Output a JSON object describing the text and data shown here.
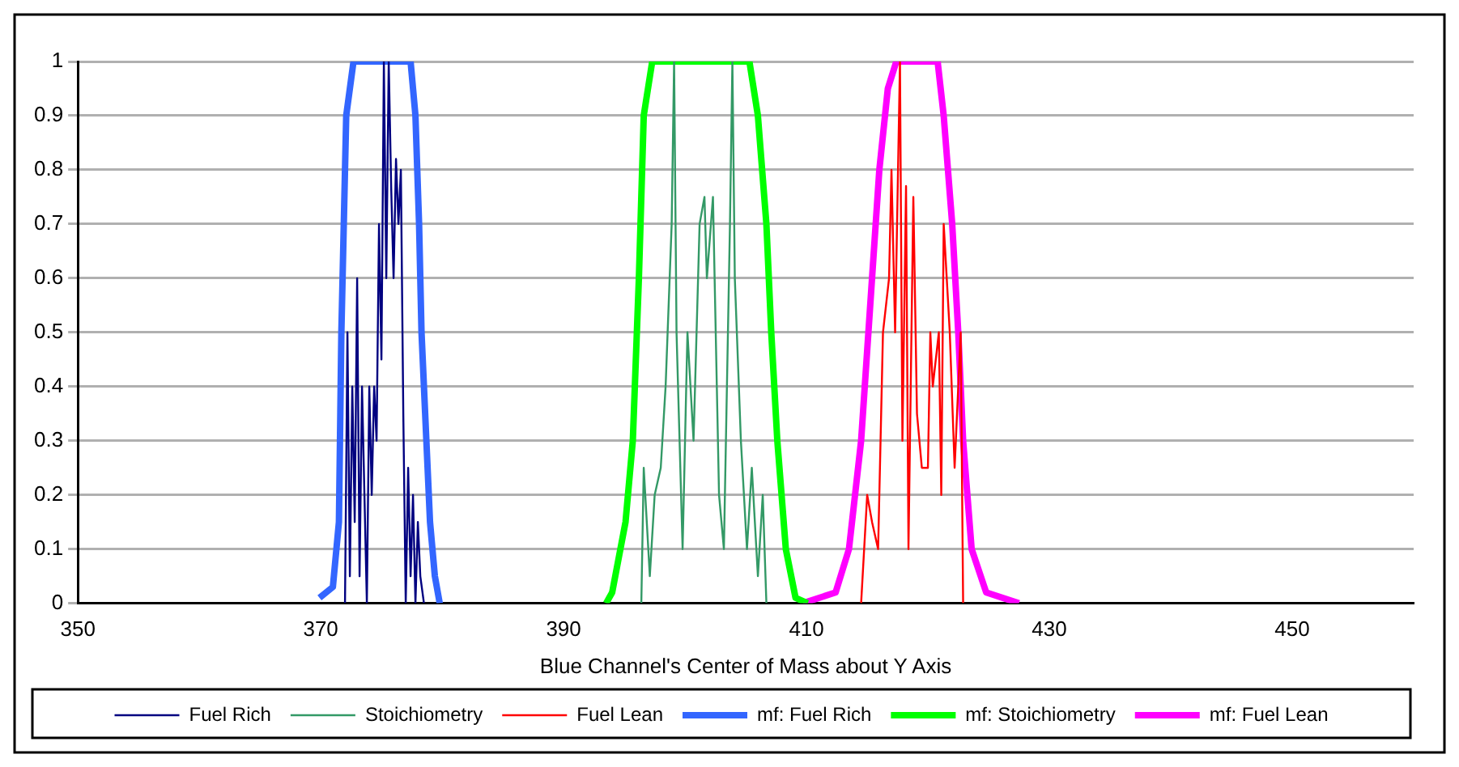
{
  "chart_data": {
    "type": "line",
    "xlabel": "Blue Channel's Center of Mass about Y Axis",
    "xlim": [
      350,
      460
    ],
    "xticks": [
      350,
      370,
      390,
      410,
      430,
      450
    ],
    "ylim": [
      0,
      1
    ],
    "yticks": [
      0,
      0.1,
      0.2,
      0.3,
      0.4,
      0.5,
      0.6,
      0.7,
      0.8,
      0.9,
      1
    ],
    "grid": "y",
    "legend": "bottom",
    "marker": "none",
    "line_style": "solid",
    "series": [
      {
        "name": "Fuel Rich",
        "color": "#000080",
        "x": [
          372.0,
          372.2,
          372.4,
          372.6,
          372.8,
          373.0,
          373.2,
          373.4,
          373.6,
          373.8,
          374.0,
          374.2,
          374.4,
          374.6,
          374.8,
          375.0,
          375.2,
          375.4,
          375.6,
          375.8,
          376.0,
          376.2,
          376.4,
          376.6,
          376.8,
          377.0,
          377.2,
          377.4,
          377.6,
          377.8,
          378.0,
          378.2,
          378.5
        ],
        "values": [
          0,
          0.5,
          0.05,
          0.4,
          0.15,
          0.6,
          0.05,
          0.4,
          0.2,
          0,
          0.4,
          0.2,
          0.4,
          0.3,
          0.7,
          0.45,
          1,
          0.6,
          1,
          0.77,
          0.6,
          0.82,
          0.7,
          0.8,
          0.35,
          0,
          0.25,
          0.05,
          0.2,
          0,
          0.15,
          0.05,
          0
        ]
      },
      {
        "name": "Stoichiometry",
        "color": "#339966",
        "x": [
          396.4,
          396.6,
          397.1,
          397.5,
          398.0,
          398.4,
          398.9,
          399.1,
          399.3,
          399.8,
          400.2,
          400.7,
          401.2,
          401.6,
          401.8,
          402.3,
          402.8,
          403.2,
          403.7,
          403.9,
          404.1,
          404.6,
          405.1,
          405.5,
          406.0,
          406.4,
          406.7
        ],
        "values": [
          0,
          0.25,
          0.05,
          0.2,
          0.25,
          0.4,
          0.7,
          1,
          0.5,
          0.1,
          0.5,
          0.3,
          0.7,
          0.75,
          0.6,
          0.75,
          0.2,
          0.1,
          0.7,
          1,
          0.6,
          0.3,
          0.1,
          0.25,
          0.05,
          0.2,
          0
        ]
      },
      {
        "name": "Fuel Lean",
        "color": "#ff0000",
        "x": [
          414.5,
          415.0,
          415.4,
          415.9,
          416.3,
          416.8,
          417.0,
          417.3,
          417.7,
          417.9,
          418.2,
          418.4,
          418.8,
          419.1,
          419.5,
          420.0,
          420.2,
          420.4,
          420.9,
          421.1,
          421.3,
          421.8,
          422.2,
          422.7,
          422.9
        ],
        "values": [
          0,
          0.2,
          0.15,
          0.1,
          0.5,
          0.6,
          0.8,
          0.5,
          1,
          0.3,
          0.77,
          0.1,
          0.75,
          0.35,
          0.25,
          0.25,
          0.5,
          0.4,
          0.5,
          0.2,
          0.7,
          0.5,
          0.25,
          0.5,
          0
        ]
      },
      {
        "name": "mf: Fuel Rich",
        "color": "#3366ff",
        "x": [
          369.9,
          371.0,
          371.5,
          371.7,
          371.9,
          372.1,
          372.7,
          377.4,
          377.8,
          378.1,
          378.3,
          378.7,
          379.0,
          379.4,
          379.8
        ],
        "values": [
          0.01,
          0.03,
          0.15,
          0.5,
          0.7,
          0.9,
          1,
          1,
          0.9,
          0.7,
          0.5,
          0.3,
          0.15,
          0.05,
          0
        ]
      },
      {
        "name": "mf: Stoichiometry",
        "color": "#00ff00",
        "x": [
          393.5,
          394.0,
          395.1,
          395.7,
          396.2,
          396.6,
          397.3,
          405.3,
          406.0,
          406.7,
          407.1,
          407.6,
          408.3,
          409.1,
          410.1
        ],
        "values": [
          0,
          0.02,
          0.15,
          0.3,
          0.6,
          0.9,
          1,
          1,
          0.9,
          0.7,
          0.5,
          0.3,
          0.1,
          0.01,
          0
        ]
      },
      {
        "name": "mf: Fuel Lean",
        "color": "#ff00ff",
        "x": [
          409.7,
          412.4,
          413.5,
          414.5,
          415.4,
          416.0,
          416.7,
          417.4,
          420.8,
          421.3,
          422.0,
          422.5,
          422.9,
          423.6,
          424.8,
          427.5
        ],
        "values": [
          0,
          0.02,
          0.1,
          0.3,
          0.6,
          0.8,
          0.95,
          1,
          1,
          0.9,
          0.7,
          0.5,
          0.3,
          0.1,
          0.02,
          0
        ]
      }
    ]
  }
}
